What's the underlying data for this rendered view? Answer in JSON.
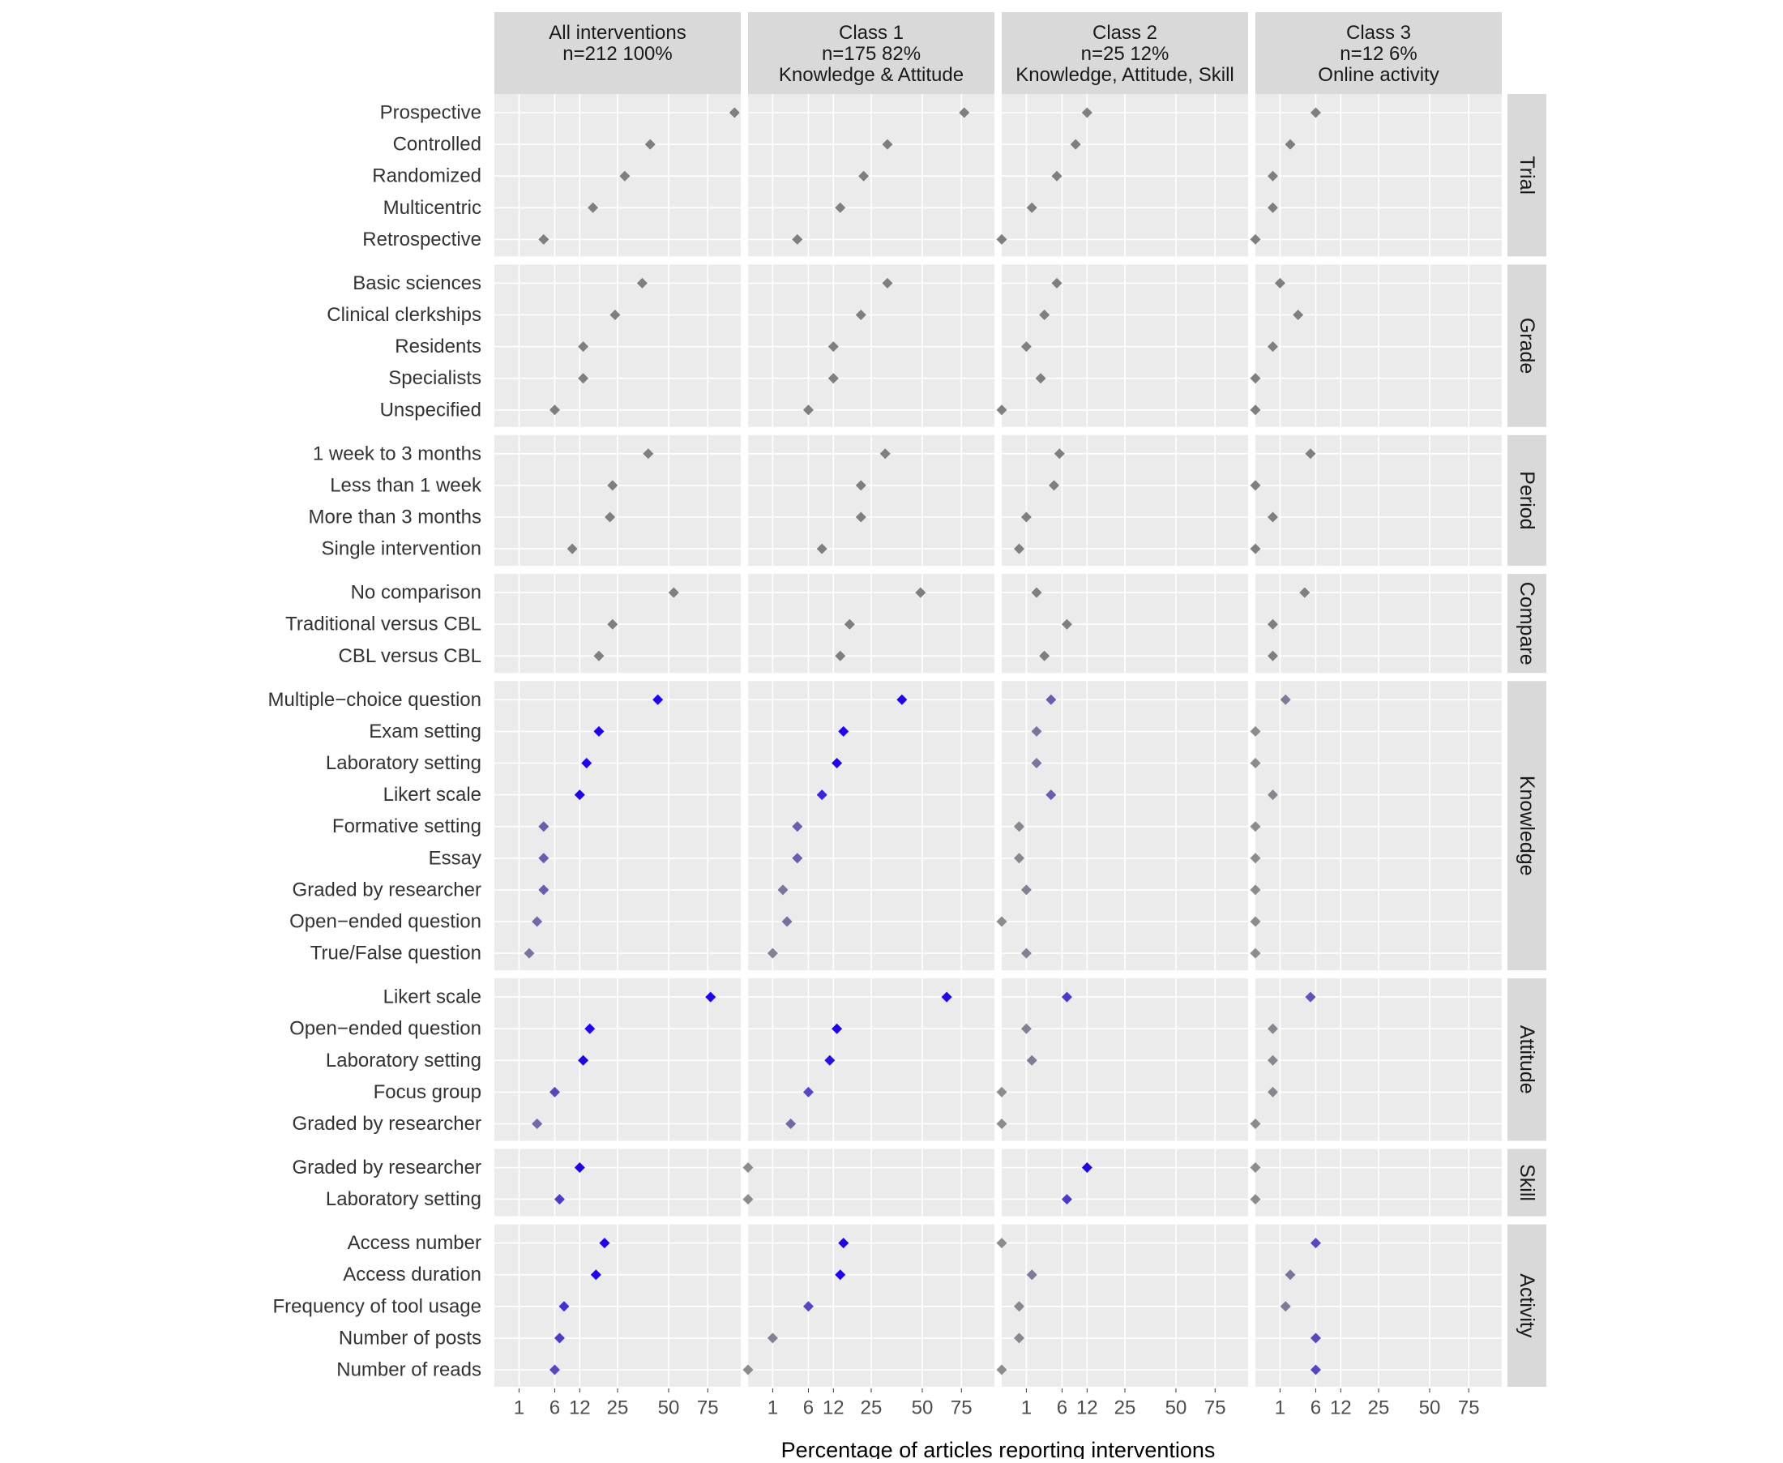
{
  "chart_data": {
    "type": "scatter",
    "xlabel": "Percentage of articles reporting interventions",
    "x_ticks": [
      "1",
      "6",
      "12",
      "25",
      "50",
      "75"
    ],
    "x_tick_values": [
      1,
      6,
      12,
      25,
      50,
      75
    ],
    "x_scale": "sqrt",
    "xlim": [
      0,
      100
    ],
    "grid": true,
    "legend": "none",
    "columns": [
      {
        "lines": [
          "All interventions",
          "n=212 100%"
        ]
      },
      {
        "lines": [
          "Class 1",
          "n=175 82%",
          "Knowledge & Attitude"
        ]
      },
      {
        "lines": [
          "Class 2",
          "n=25 12%",
          "Knowledge, Attitude, Skill"
        ]
      },
      {
        "lines": [
          "Class 3",
          "n=12 6%",
          "Online activity"
        ]
      }
    ],
    "colors": {
      "outcome_low": "#8c8c8c",
      "outcome_high": "#1f00ff",
      "category_point": "#7f7f7f"
    },
    "groups": [
      {
        "name": "Trial",
        "colored": false,
        "rows": [
          {
            "label": "Prospective",
            "values": [
              95,
              77,
              12,
              6
            ]
          },
          {
            "label": "Controlled",
            "values": [
              40,
              32,
              9,
              2
            ]
          },
          {
            "label": "Randomized",
            "values": [
              28,
              22,
              5,
              0.5
            ]
          },
          {
            "label": "Multicentric",
            "values": [
              16,
              14,
              1.5,
              0.5
            ]
          },
          {
            "label": "Retrospective",
            "values": [
              4,
              4,
              0,
              0
            ]
          }
        ]
      },
      {
        "name": "Grade",
        "colored": false,
        "rows": [
          {
            "label": "Basic sciences",
            "values": [
              36,
              32,
              5,
              1
            ]
          },
          {
            "label": "Clinical clerkships",
            "values": [
              24,
              21,
              3,
              3
            ]
          },
          {
            "label": "Residents",
            "values": [
              13,
              12,
              1,
              0.5
            ]
          },
          {
            "label": "Specialists",
            "values": [
              13,
              12,
              2.5,
              0
            ]
          },
          {
            "label": "Unspecified",
            "values": [
              6,
              6,
              0,
              0
            ]
          }
        ]
      },
      {
        "name": "Period",
        "colored": false,
        "rows": [
          {
            "label": "1 week to 3 months",
            "values": [
              39,
              31,
              5.5,
              5
            ]
          },
          {
            "label": "Less than 1 week",
            "values": [
              23,
              21,
              4.5,
              0
            ]
          },
          {
            "label": "More than 3 months",
            "values": [
              22,
              21,
              1,
              0.5
            ]
          },
          {
            "label": "Single intervention",
            "values": [
              10,
              9,
              0.5,
              0
            ]
          }
        ]
      },
      {
        "name": "Compare",
        "colored": false,
        "rows": [
          {
            "label": "No comparison",
            "values": [
              53,
              49,
              2,
              4
            ]
          },
          {
            "label": "Traditional versus CBL",
            "values": [
              23,
              17,
              7,
              0.5
            ]
          },
          {
            "label": "CBL versus CBL",
            "values": [
              18,
              14,
              3,
              0.5
            ]
          }
        ]
      },
      {
        "name": "Knowledge",
        "colored": true,
        "rows": [
          {
            "label": "Multiple−choice question",
            "values": [
              44,
              39,
              4,
              1.5
            ]
          },
          {
            "label": "Exam setting",
            "values": [
              18,
              15,
              2,
              0
            ]
          },
          {
            "label": "Laboratory setting",
            "values": [
              14,
              13,
              2,
              0
            ]
          },
          {
            "label": "Likert scale",
            "values": [
              12,
              9,
              4,
              0.5
            ]
          },
          {
            "label": "Formative setting",
            "values": [
              4,
              4,
              0.5,
              0
            ]
          },
          {
            "label": "Essay",
            "values": [
              4,
              4,
              0.5,
              0
            ]
          },
          {
            "label": "Graded by researcher",
            "values": [
              4,
              2,
              1,
              0
            ]
          },
          {
            "label": "Open−ended question",
            "values": [
              3,
              2.5,
              0,
              0
            ]
          },
          {
            "label": "True/False question",
            "values": [
              2,
              1,
              1,
              0
            ]
          }
        ]
      },
      {
        "name": "Attitude",
        "colored": true,
        "rows": [
          {
            "label": "Likert scale",
            "values": [
              77,
              65,
              7,
              5
            ]
          },
          {
            "label": "Open−ended question",
            "values": [
              15,
              13,
              1,
              0.5
            ]
          },
          {
            "label": "Laboratory setting",
            "values": [
              13,
              11,
              1.5,
              0.5
            ]
          },
          {
            "label": "Focus group",
            "values": [
              6,
              6,
              0,
              0.5
            ]
          },
          {
            "label": "Graded by researcher",
            "values": [
              3,
              3,
              0,
              0
            ]
          }
        ]
      },
      {
        "name": "Skill",
        "colored": true,
        "rows": [
          {
            "label": "Graded by researcher",
            "values": [
              12,
              0,
              12,
              0
            ]
          },
          {
            "label": "Laboratory setting",
            "values": [
              7,
              0,
              7,
              0
            ]
          }
        ]
      },
      {
        "name": "Activity",
        "colored": true,
        "rows": [
          {
            "label": "Access number",
            "values": [
              20,
              15,
              0,
              6
            ]
          },
          {
            "label": "Access duration",
            "values": [
              17,
              14,
              1.5,
              2
            ]
          },
          {
            "label": "Frequency of tool usage",
            "values": [
              8,
              6,
              0.5,
              1.5
            ]
          },
          {
            "label": "Number of posts",
            "values": [
              7,
              1,
              0.5,
              6
            ]
          },
          {
            "label": "Number of reads",
            "values": [
              6,
              0,
              0,
              6
            ]
          }
        ]
      }
    ]
  }
}
